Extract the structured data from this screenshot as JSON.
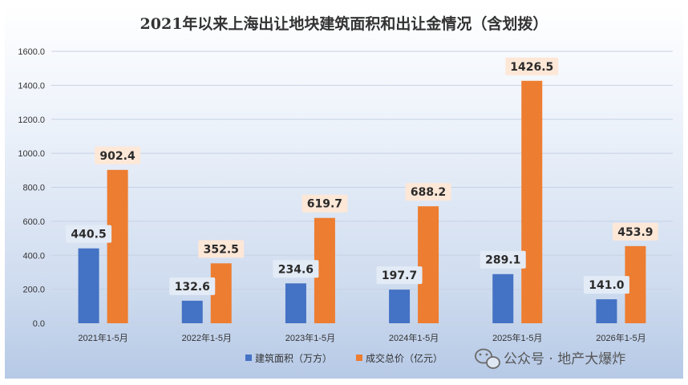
{
  "chart_data": {
    "type": "bar",
    "title": "2021年以来上海出让地块建筑面积和出让金情况（含划拨）",
    "categories": [
      "2021年1-5月",
      "2022年1-5月",
      "2023年1-5月",
      "2024年1-5月",
      "2025年1-5月",
      "2026年1-5月"
    ],
    "series": [
      {
        "name": "建筑面积（万方）",
        "color": "#4472c4",
        "values": [
          440.5,
          132.6,
          234.6,
          197.7,
          289.1,
          141.0
        ],
        "labels": [
          "440.5",
          "132.6",
          "234.6",
          "197.7",
          "289.1",
          "141.0"
        ]
      },
      {
        "name": "成交总价（亿元）",
        "color": "#ed7d31",
        "values": [
          902.4,
          352.5,
          619.7,
          688.2,
          1426.5,
          453.9
        ],
        "labels": [
          "902.4",
          "352.5",
          "619.7",
          "688.2",
          "1426.5",
          "453.9"
        ]
      }
    ],
    "ylim": [
      0,
      1600
    ],
    "yticks": [
      "0.0",
      "200.0",
      "400.0",
      "600.0",
      "800.0",
      "1000.0",
      "1200.0",
      "1400.0",
      "1600.0"
    ],
    "grid": true,
    "legend_position": "bottom"
  },
  "watermark": {
    "text": "公众号 · 地产大爆炸",
    "icon": "wechat-icon"
  }
}
